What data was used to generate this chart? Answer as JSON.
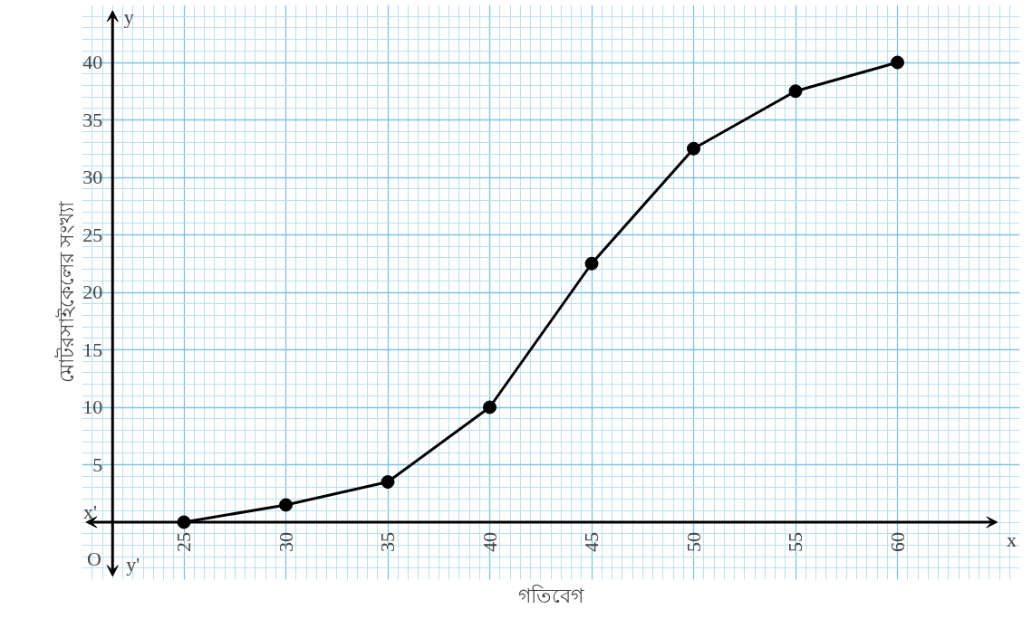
{
  "chart_data": {
    "type": "line",
    "xlabel": "গতিবেগ",
    "ylabel": "মোটরসাইকেলের সংখ্যা",
    "series": [
      {
        "color": "#000000",
        "x": [
          25,
          30,
          35,
          40,
          45,
          50,
          55,
          60
        ],
        "values": [
          0,
          1.5,
          3.5,
          10,
          22.5,
          32.5,
          37.5,
          40
        ]
      }
    ],
    "xlim": [
      20,
      66
    ],
    "ylim": [
      -5,
      45
    ],
    "xticks": [
      25,
      30,
      35,
      40,
      45,
      50,
      55,
      60
    ],
    "yticks": [
      5,
      10,
      15,
      20,
      25,
      30,
      35,
      40
    ],
    "grid": true,
    "marker": "circle",
    "line_style": "solid",
    "annotations": [
      "x'",
      "x",
      "y",
      "y'",
      "O"
    ]
  }
}
